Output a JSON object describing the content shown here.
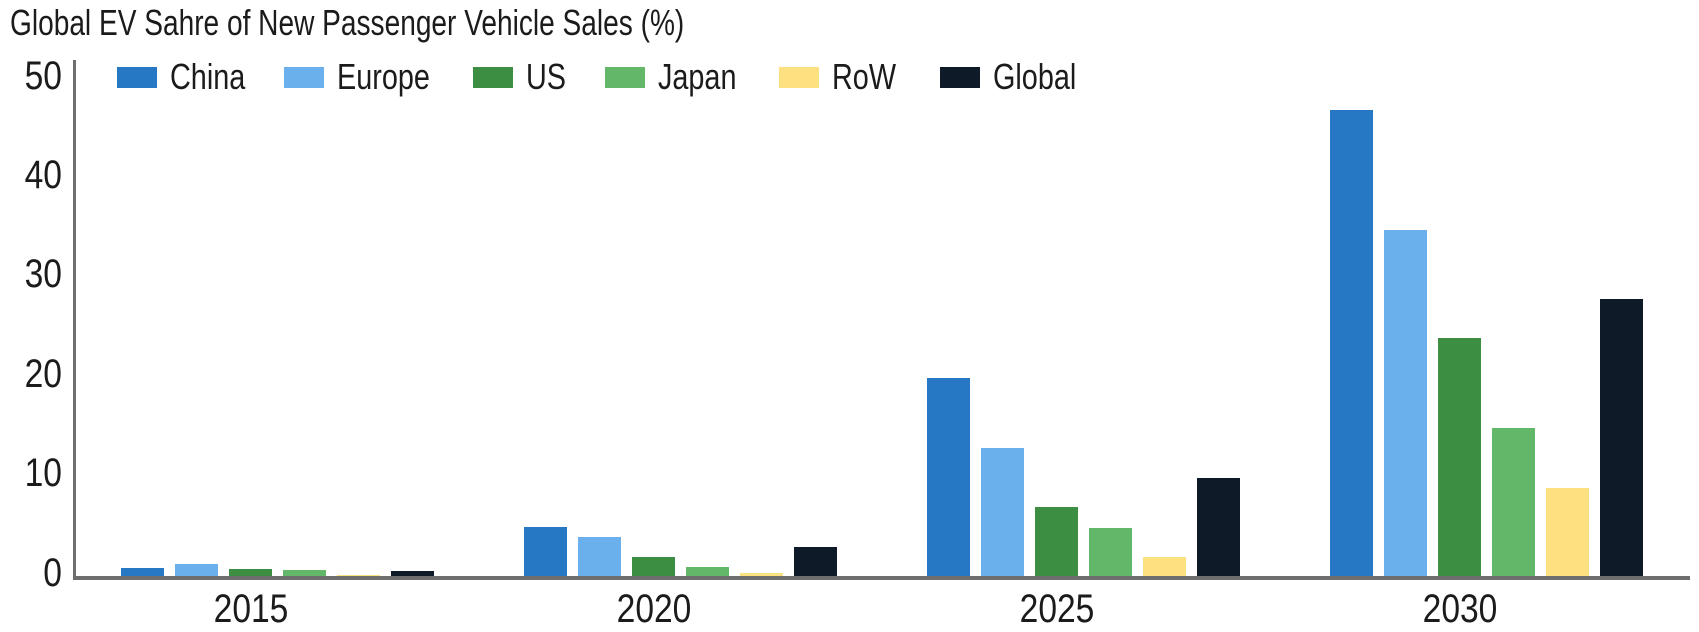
{
  "chart_data": {
    "type": "bar",
    "title": "Global EV Sahre of New Passenger Vehicle Sales (%)",
    "categories": [
      "2015",
      "2020",
      "2025",
      "2030"
    ],
    "series": [
      {
        "name": "China",
        "color": "#2677c4",
        "values": [
          0.8,
          4.9,
          19.9,
          46.9
        ]
      },
      {
        "name": "Europe",
        "color": "#69b0ec",
        "values": [
          1.2,
          3.9,
          12.9,
          34.8
        ]
      },
      {
        "name": "US",
        "color": "#3c8f42",
        "values": [
          0.7,
          1.9,
          6.9,
          23.9
        ]
      },
      {
        "name": "Japan",
        "color": "#62b768",
        "values": [
          0.6,
          0.9,
          4.8,
          14.9
        ]
      },
      {
        "name": "RoW",
        "color": "#fde180",
        "values": [
          0.1,
          0.3,
          1.9,
          8.9
        ]
      },
      {
        "name": "Global",
        "color": "#0f1a28",
        "values": [
          0.5,
          2.9,
          9.9,
          27.9
        ]
      }
    ],
    "xlabel": "",
    "ylabel": "",
    "ylim": [
      0,
      50
    ],
    "yticks": [
      0,
      10,
      20,
      30,
      40,
      50
    ],
    "legend_position": "top",
    "grid": false,
    "axis_color": "#6e6e6e",
    "text_color": "#1b1b1b",
    "background": "#ffffff"
  }
}
